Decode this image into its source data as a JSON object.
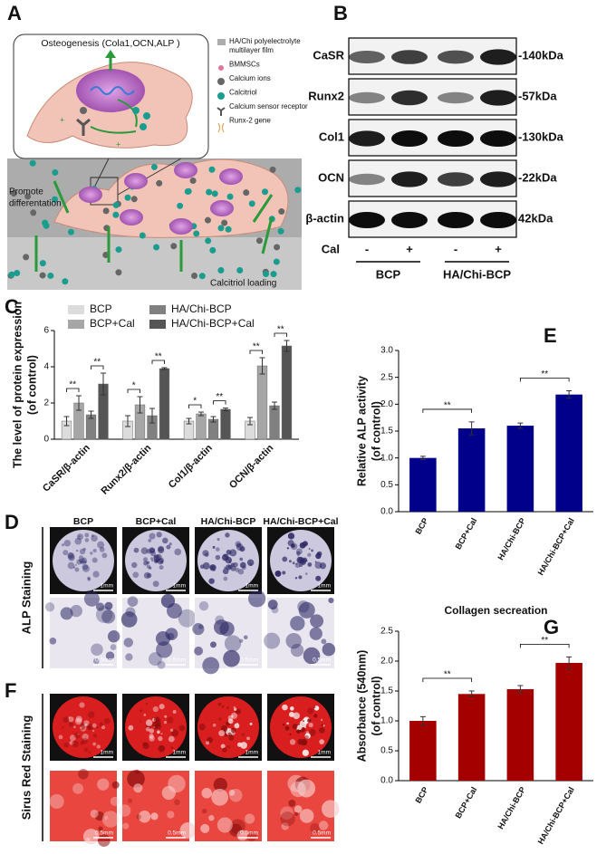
{
  "panel_labels": [
    "A",
    "B",
    "C",
    "D",
    "E",
    "F",
    "G"
  ],
  "schematic": {
    "box_title": "Osteogenesis (Cola1,OCN,ALP )",
    "signs": [
      "+",
      "+"
    ],
    "legend": [
      {
        "lines": [
          "HA/Chi polyelectrolyte",
          "multilayer film"
        ]
      },
      {
        "lines": [
          "BMMSCs"
        ]
      },
      {
        "lines": [
          "Calcium ions"
        ]
      },
      {
        "lines": [
          "Calcitriol"
        ]
      },
      {
        "lines": [
          "Calcium sensor receptor"
        ]
      },
      {
        "lines": [
          "Runx-2 gene"
        ]
      }
    ],
    "promote": [
      "Promote",
      "differentation"
    ],
    "loading": "Calcitriol loading"
  },
  "blot": {
    "proteins": [
      "CaSR",
      "Runx2",
      "Col1",
      "OCN",
      "β-actin"
    ],
    "sizes": [
      "-140kDa",
      "-57kDa",
      "-130kDa",
      "-22kDa",
      "42kDa"
    ],
    "cal_label": "Cal",
    "cal_signs": [
      "-",
      "+",
      "-",
      "+"
    ],
    "groups": [
      "BCP",
      "HA/Chi-BCP"
    ]
  },
  "staining": {
    "columns": [
      "BCP",
      "BCP+Cal",
      "HA/Chi-BCP",
      "HA/Chi-BCP+Cal"
    ],
    "rows": [
      "ALP Staining",
      "Sirus Red Staining"
    ],
    "scale_bars": [
      "1mm",
      "0.5mm"
    ]
  },
  "chart_data": [
    {
      "type": "grouped_bar",
      "ylabel": [
        "The level of protein expression",
        "(of control)"
      ],
      "categories": [
        "CaSR/β-actin",
        "Runx2/β-actin",
        "Col1/β-actin",
        "OCN/β-actin"
      ],
      "series": [
        {
          "name": "BCP",
          "color": "#dcdcdc",
          "values": [
            1,
            1,
            1,
            1
          ],
          "errors": [
            0.25,
            0.3,
            0.15,
            0.2
          ]
        },
        {
          "name": "BCP+Cal",
          "color": "#a6a6a6",
          "values": [
            2.0,
            1.9,
            1.4,
            4.05
          ],
          "errors": [
            0.4,
            0.45,
            0.1,
            0.45
          ]
        },
        {
          "name": "HA/Chi-BCP",
          "color": "#808080",
          "values": [
            1.35,
            1.3,
            1.1,
            1.85
          ],
          "errors": [
            0.2,
            0.4,
            0.15,
            0.2
          ]
        },
        {
          "name": "HA/Chi-BCP+Cal",
          "color": "#555555",
          "values": [
            3.05,
            3.9,
            1.65,
            5.15
          ],
          "errors": [
            0.6,
            0.05,
            0.07,
            0.3
          ]
        }
      ],
      "ylim": [
        0,
        6
      ],
      "yticks": [
        0,
        2,
        4,
        6
      ],
      "significance": [
        {
          "label": "**",
          "category": 0,
          "between": [
            0,
            1
          ]
        },
        {
          "label": "**",
          "category": 0,
          "between": [
            2,
            3
          ]
        },
        {
          "label": "*",
          "category": 1,
          "between": [
            0,
            1
          ]
        },
        {
          "label": "**",
          "category": 1,
          "between": [
            2,
            3
          ]
        },
        {
          "label": "*",
          "category": 2,
          "between": [
            0,
            1
          ]
        },
        {
          "label": "**",
          "category": 2,
          "between": [
            2,
            3
          ]
        },
        {
          "label": "**",
          "category": 3,
          "between": [
            0,
            1
          ]
        },
        {
          "label": "**",
          "category": 3,
          "between": [
            2,
            3
          ]
        }
      ]
    },
    {
      "type": "bar",
      "ylabel": [
        "Relative ALP activity",
        "(of control)"
      ],
      "categories": [
        "BCP",
        "BCP+Cal",
        "HA/Chi-BCP",
        "HA/Chi-BCP+Cal"
      ],
      "values": [
        1.0,
        1.55,
        1.6,
        2.18
      ],
      "errors": [
        0.03,
        0.12,
        0.05,
        0.07
      ],
      "color": "#00008b",
      "ylim": [
        0,
        3
      ],
      "yticks": [
        {
          "value": 0,
          "label": "0.0"
        },
        {
          "value": 0.5,
          "label": "0.5"
        },
        {
          "value": 1,
          "label": "1.0"
        },
        {
          "value": 1.5,
          "label": "1.5"
        },
        {
          "value": 2,
          "label": "2.0"
        },
        {
          "value": 2.5,
          "label": "2.5"
        },
        {
          "value": 3,
          "label": "3.0"
        }
      ],
      "significance": [
        {
          "label": "**",
          "between": [
            0,
            1
          ]
        },
        {
          "label": "**",
          "between": [
            2,
            3
          ]
        }
      ]
    },
    {
      "type": "bar",
      "title": "Collagen secreation",
      "ylabel": [
        "Absorbance (540nm)",
        "(of control)"
      ],
      "categories": [
        "BCP",
        "BCP+Cal",
        "HA/Chi-BCP",
        "HA/Chi-BCP+Cal"
      ],
      "values": [
        1.0,
        1.45,
        1.53,
        1.97
      ],
      "errors": [
        0.07,
        0.05,
        0.06,
        0.1
      ],
      "color": "#a50000",
      "ylim": [
        0,
        2.5
      ],
      "yticks": [
        {
          "value": 0,
          "label": "0.0"
        },
        {
          "value": 0.5,
          "label": "0.5"
        },
        {
          "value": 1,
          "label": "1.0"
        },
        {
          "value": 1.5,
          "label": "1.5"
        },
        {
          "value": 2,
          "label": "2.0"
        },
        {
          "value": 2.5,
          "label": "2.5"
        }
      ],
      "significance": [
        {
          "label": "**",
          "between": [
            0,
            1
          ]
        },
        {
          "label": "**",
          "between": [
            2,
            3
          ]
        }
      ]
    }
  ]
}
